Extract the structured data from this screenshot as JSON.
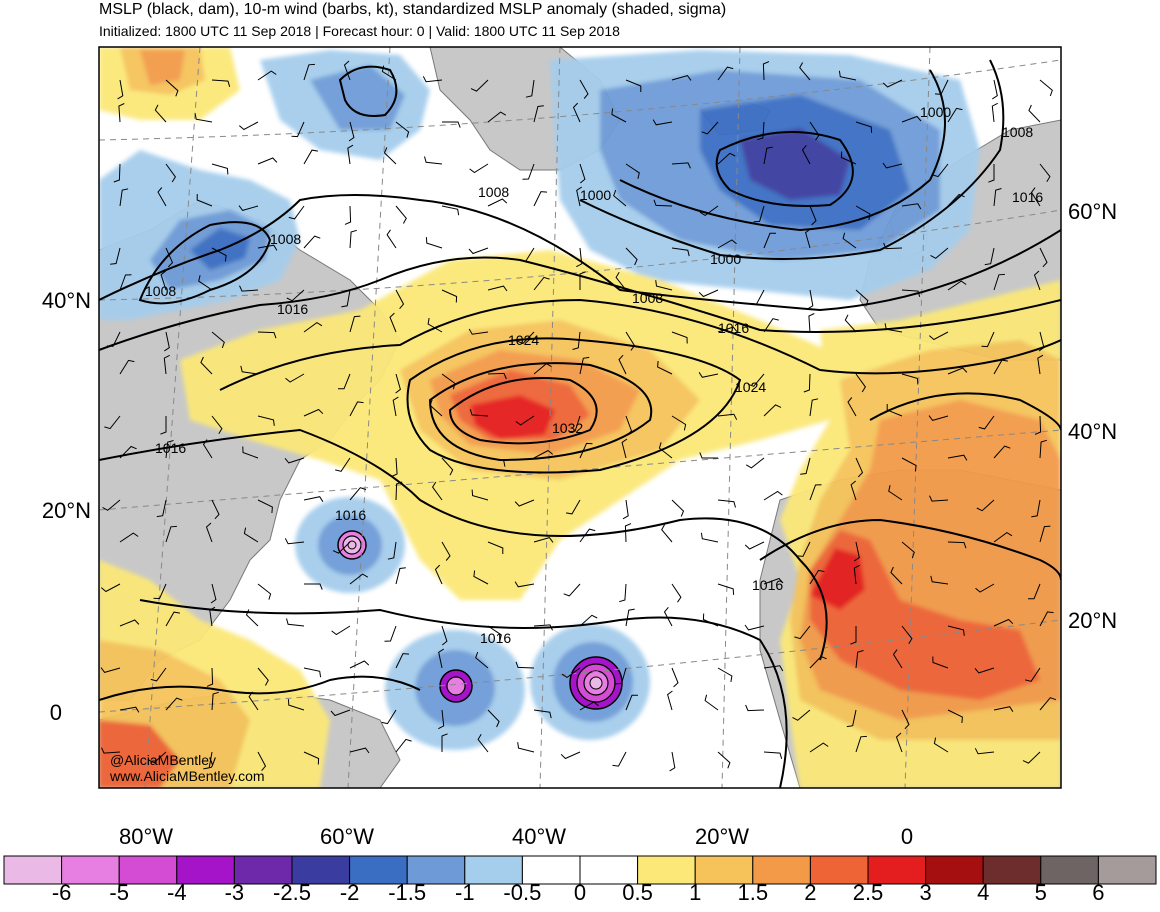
{
  "header": {
    "title": "MSLP (black, dam), 10-m wind (barbs, kt), standardized MSLP anomaly (shaded, sigma)",
    "subtitle": "Initialized: 1800 UTC 11 Sep 2018 | Forecast hour: 0 | Valid: 1800 UTC 11 Sep 2018"
  },
  "map": {
    "projection": "lambert-conformal",
    "lat_labels_left": [
      "40°N",
      "20°N",
      "0"
    ],
    "lat_labels_right": [
      "60°N",
      "40°N",
      "20°N"
    ],
    "lon_labels": [
      "80°W",
      "60°W",
      "40°W",
      "20°W",
      "0"
    ],
    "isobar_labels": [
      "1008",
      "1008",
      "1016",
      "1008",
      "1000",
      "1000",
      "1008",
      "1016",
      "1000",
      "1016",
      "1008",
      "1024",
      "1032",
      "1024",
      "1016",
      "1016",
      "1016",
      "1016"
    ],
    "credit_handle": "@AliciaMBentley",
    "credit_url": "www.AliciaMBentley.com"
  },
  "colorbar": {
    "ticks": [
      "-6",
      "-5",
      "-4",
      "-3",
      "-2.5",
      "-2",
      "-1.5",
      "-1",
      "-0.5",
      "0",
      "0.5",
      "1",
      "1.5",
      "2",
      "2.5",
      "3",
      "4",
      "5",
      "6"
    ],
    "colors": [
      "#ebb9e6",
      "#e67fe1",
      "#d34cd3",
      "#a514c8",
      "#6e28aa",
      "#3a3ca0",
      "#3a6ec3",
      "#6e9bd7",
      "#a5cdec",
      "#ffffff",
      "#ffffff",
      "#fbe878",
      "#f5c35a",
      "#f39a48",
      "#ee6436",
      "#e41e1e",
      "#a50f0f",
      "#6e2d2d",
      "#6e6464",
      "#a59b9b"
    ]
  }
}
